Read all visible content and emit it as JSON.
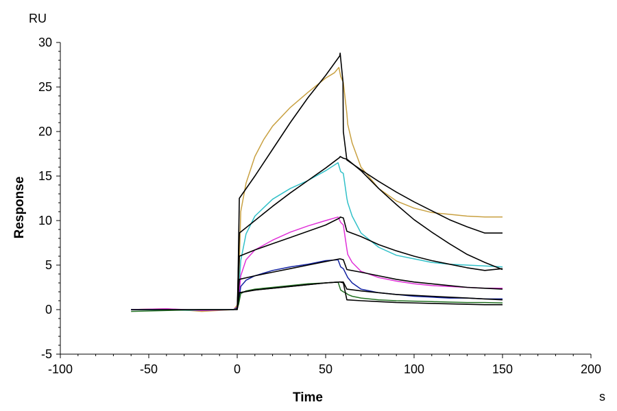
{
  "chart_data": {
    "type": "line",
    "title": "",
    "xlabel": "Time",
    "ylabel": "Response",
    "x_unit": "s",
    "y_unit": "RU",
    "xlim": [
      -100,
      200
    ],
    "ylim": [
      -5,
      30
    ],
    "x_ticks": [
      -100,
      -50,
      0,
      50,
      100,
      150,
      200
    ],
    "y_ticks": [
      -5,
      0,
      5,
      10,
      15,
      20,
      25,
      30
    ],
    "x_tick_labels": [
      "-100",
      "-50",
      "0",
      "50",
      "100",
      "150",
      "200"
    ],
    "y_tick_labels": [
      "-5",
      "0",
      "5",
      "10",
      "15",
      "20",
      "25",
      "30"
    ],
    "grid": false,
    "legend": "none",
    "series": [
      {
        "color": "#C8A040",
        "x": [
          -60,
          -40,
          -20,
          -2,
          0,
          0.8,
          2,
          5,
          10,
          15,
          20,
          30,
          40,
          50,
          55,
          57.5,
          58.5,
          60,
          62,
          62.5,
          65,
          70,
          80,
          90,
          100,
          110,
          120,
          130,
          140,
          150
        ],
        "y": [
          0,
          0.1,
          -0.2,
          0,
          0.5,
          2.2,
          11.0,
          14.2,
          17.2,
          19.1,
          20.6,
          22.7,
          24.4,
          26.0,
          26.6,
          27.2,
          26.2,
          25.5,
          22.0,
          20.8,
          18.7,
          16.0,
          13.6,
          12.2,
          11.4,
          10.9,
          10.7,
          10.5,
          10.4,
          10.4
        ]
      },
      {
        "color": "#30C0C8",
        "x": [
          -60,
          -20,
          -2,
          0,
          0.8,
          2,
          5,
          10,
          20,
          30,
          40,
          50,
          57,
          58.5,
          60,
          62,
          62.5,
          65,
          70,
          80,
          90,
          100,
          110,
          120,
          130,
          140,
          150
        ],
        "y": [
          0,
          -0.1,
          0,
          0.3,
          1.5,
          5.5,
          8.5,
          10.5,
          12.4,
          13.6,
          14.5,
          15.6,
          16.5,
          15.5,
          15.3,
          12.5,
          12.0,
          10.5,
          8.6,
          7.0,
          6.1,
          5.7,
          5.3,
          5.1,
          5.0,
          4.9,
          4.8
        ]
      },
      {
        "color": "#E030D8",
        "x": [
          -60,
          -40,
          -20,
          -2,
          0,
          0.8,
          2,
          5,
          10,
          20,
          30,
          40,
          50,
          57,
          58.5,
          60,
          62,
          62.5,
          65,
          70,
          80,
          90,
          100,
          110,
          120,
          130,
          140,
          150
        ],
        "y": [
          0,
          0.1,
          -0.1,
          0,
          0.3,
          1.0,
          3.8,
          5.6,
          6.7,
          7.8,
          8.7,
          9.4,
          10.0,
          10.4,
          9.8,
          9.5,
          6.8,
          6.2,
          5.3,
          4.3,
          3.6,
          3.2,
          2.9,
          2.7,
          2.6,
          2.5,
          2.4,
          2.4
        ]
      },
      {
        "color": "#1020A0",
        "x": [
          -60,
          -20,
          -2,
          0,
          0.8,
          2,
          5,
          10,
          20,
          30,
          40,
          50,
          57,
          58.5,
          60,
          62,
          62.5,
          65,
          70,
          80,
          90,
          100,
          110,
          120,
          130,
          140,
          150
        ],
        "y": [
          0,
          0,
          0,
          0.2,
          0.8,
          2.6,
          3.3,
          3.8,
          4.4,
          4.8,
          5.1,
          5.5,
          5.6,
          4.8,
          4.6,
          3.8,
          3.6,
          3.0,
          2.3,
          1.9,
          1.7,
          1.5,
          1.4,
          1.3,
          1.3,
          1.2,
          1.2
        ]
      },
      {
        "color": "#207020",
        "x": [
          -60,
          -20,
          -2,
          0,
          0.8,
          2,
          5,
          10,
          20,
          30,
          40,
          50,
          57,
          58.5,
          60,
          62,
          62.5,
          65,
          70,
          80,
          90,
          100,
          110,
          120,
          130,
          140,
          150
        ],
        "y": [
          -0.2,
          0,
          0,
          0.1,
          0.6,
          1.8,
          2.1,
          2.3,
          2.5,
          2.7,
          2.9,
          3.0,
          3.1,
          2.2,
          2.0,
          1.8,
          1.7,
          1.5,
          1.3,
          1.1,
          1.0,
          0.95,
          0.9,
          0.85,
          0.8,
          0.8,
          0.75
        ]
      },
      {
        "color": "#000000",
        "x": [
          -60,
          -40,
          -20,
          0,
          0.2,
          1.2,
          10,
          20,
          30,
          40,
          50,
          58,
          58.2,
          59.8,
          60,
          62,
          70,
          80,
          90,
          100,
          110,
          120,
          130,
          140,
          150
        ],
        "y": [
          0,
          0,
          0,
          0,
          0.3,
          12.5,
          15.0,
          18.0,
          21.0,
          23.8,
          26.3,
          28.5,
          28.8,
          25.6,
          20.0,
          16.8,
          15.7,
          14.4,
          13.2,
          12.1,
          11.1,
          10.1,
          9.3,
          8.6,
          8.6
        ]
      },
      {
        "color": "#000000",
        "x": [
          0,
          1.2,
          10,
          20,
          30,
          40,
          50,
          58,
          58.2,
          60,
          62,
          70,
          80,
          90,
          100,
          110,
          120,
          130,
          140,
          150
        ],
        "y": [
          0,
          8.6,
          10.0,
          11.6,
          13.1,
          14.5,
          15.9,
          17.1,
          17.2,
          17.0,
          16.9,
          15.6,
          13.6,
          11.8,
          10.1,
          8.7,
          7.4,
          6.2,
          5.3,
          4.5
        ]
      },
      {
        "color": "#000000",
        "x": [
          0,
          1.2,
          10,
          20,
          30,
          40,
          50,
          58,
          58.2,
          60,
          62,
          70,
          80,
          90,
          100,
          110,
          120,
          130,
          140,
          150
        ],
        "y": [
          0,
          6.0,
          6.7,
          7.4,
          8.1,
          8.8,
          9.5,
          10.3,
          10.4,
          10.3,
          8.8,
          8.2,
          7.3,
          6.6,
          6.0,
          5.5,
          5.1,
          4.7,
          4.4,
          4.6
        ]
      },
      {
        "color": "#000000",
        "x": [
          0,
          1.2,
          10,
          20,
          30,
          40,
          50,
          58,
          58.2,
          60,
          62,
          70,
          80,
          90,
          100,
          110,
          120,
          130,
          140,
          150
        ],
        "y": [
          0,
          3.4,
          3.8,
          4.2,
          4.6,
          5.0,
          5.4,
          5.7,
          5.7,
          5.6,
          4.5,
          4.2,
          3.8,
          3.4,
          3.1,
          2.9,
          2.7,
          2.5,
          2.4,
          2.3
        ]
      },
      {
        "color": "#000000",
        "x": [
          0,
          1.2,
          10,
          20,
          30,
          40,
          50,
          58,
          58.2,
          60,
          62,
          70,
          80,
          90,
          100,
          110,
          120,
          130,
          140,
          150
        ],
        "y": [
          0,
          1.9,
          2.2,
          2.4,
          2.6,
          2.8,
          3.0,
          3.1,
          3.1,
          3.1,
          2.3,
          2.1,
          1.9,
          1.7,
          1.6,
          1.5,
          1.4,
          1.3,
          1.2,
          1.1
        ]
      },
      {
        "color": "#000000",
        "x": [
          0,
          1.2,
          10,
          20,
          30,
          40,
          50,
          58,
          58.2,
          60,
          62,
          70,
          80,
          90,
          100,
          110,
          120,
          130,
          140,
          150
        ],
        "y": [
          0,
          1.9,
          2.2,
          2.4,
          2.6,
          2.8,
          3.0,
          3.1,
          3.1,
          3.0,
          1.1,
          1.0,
          0.9,
          0.8,
          0.75,
          0.7,
          0.65,
          0.6,
          0.55,
          0.55
        ]
      }
    ]
  }
}
